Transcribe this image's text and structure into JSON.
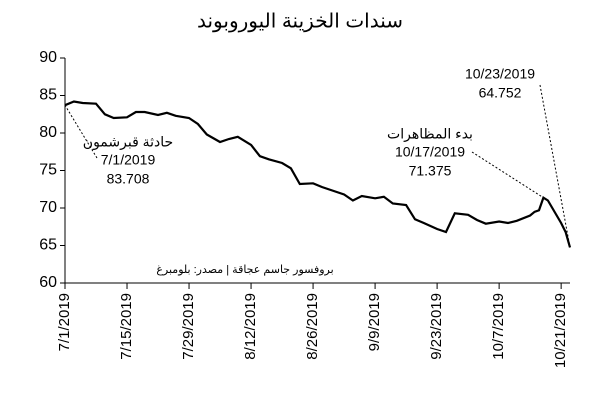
{
  "chart_data": {
    "type": "line",
    "title": "سندات الخزينة اليوروبوند",
    "source": "بروفسور جاسم عجاقة | مصدر: بلومبرغ",
    "color": "#000000",
    "x": [
      "7/1/2019",
      "7/3/2019",
      "7/5/2019",
      "7/8/2019",
      "7/10/2019",
      "7/12/2019",
      "7/15/2019",
      "7/17/2019",
      "7/19/2019",
      "7/22/2019",
      "7/24/2019",
      "7/26/2019",
      "7/29/2019",
      "7/31/2019",
      "8/2/2019",
      "8/5/2019",
      "8/7/2019",
      "8/9/2019",
      "8/12/2019",
      "8/14/2019",
      "8/16/2019",
      "8/19/2019",
      "8/21/2019",
      "8/23/2019",
      "8/26/2019",
      "8/28/2019",
      "8/30/2019",
      "9/2/2019",
      "9/4/2019",
      "9/6/2019",
      "9/9/2019",
      "9/11/2019",
      "9/13/2019",
      "9/16/2019",
      "9/18/2019",
      "9/20/2019",
      "9/23/2019",
      "9/25/2019",
      "9/27/2019",
      "9/30/2019",
      "10/2/2019",
      "10/4/2019",
      "10/7/2019",
      "10/9/2019",
      "10/11/2019",
      "10/14/2019",
      "10/15/2019",
      "10/16/2019",
      "10/17/2019",
      "10/18/2019",
      "10/21/2019",
      "10/22/2019",
      "10/23/2019"
    ],
    "values": [
      83.708,
      84.2,
      84.0,
      83.9,
      82.5,
      82.0,
      82.1,
      82.8,
      82.8,
      82.4,
      82.7,
      82.3,
      82.0,
      81.2,
      79.8,
      78.8,
      79.2,
      79.5,
      78.4,
      76.9,
      76.5,
      76.0,
      75.3,
      73.2,
      73.3,
      72.8,
      72.4,
      71.8,
      71.0,
      71.6,
      71.3,
      71.5,
      70.6,
      70.4,
      68.5,
      68.0,
      67.2,
      66.8,
      69.3,
      69.1,
      68.4,
      67.9,
      68.2,
      68.0,
      68.3,
      69.0,
      69.5,
      69.7,
      71.375,
      71.0,
      68.0,
      66.8,
      64.752
    ],
    "xlim": [
      "7/1/2019",
      "10/23/2019"
    ],
    "xticks": [
      "7/1/2019",
      "7/15/2019",
      "7/29/2019",
      "8/12/2019",
      "8/26/2019",
      "9/9/2019",
      "9/23/2019",
      "10/7/2019",
      "10/21/2019"
    ],
    "ylim": [
      60,
      90
    ],
    "yticks": [
      60,
      65,
      70,
      75,
      80,
      85,
      90
    ],
    "grid": false,
    "annotations": [
      {
        "label": "حادثة قبرشمون",
        "x": "7/1/2019",
        "value": 83.708
      },
      {
        "label": "بدء المظاهرات",
        "x": "10/17/2019",
        "value": 71.375
      },
      {
        "x": "10/23/2019",
        "value": 64.752
      }
    ]
  }
}
